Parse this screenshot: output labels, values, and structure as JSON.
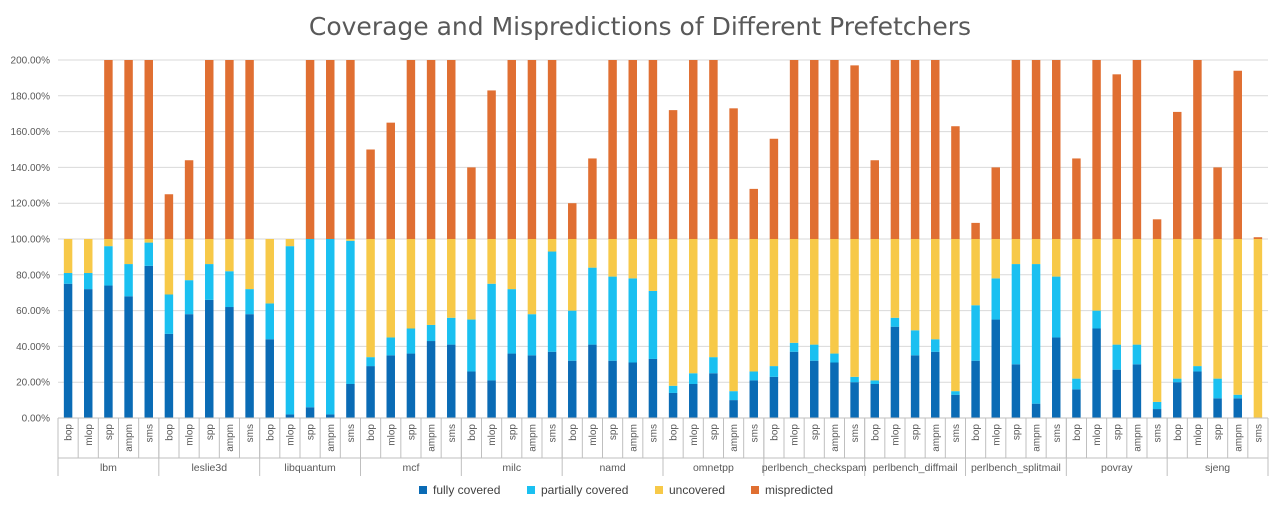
{
  "chart_data": {
    "type": "bar",
    "stacked": true,
    "title": "Coverage and Mispredictions of Different Prefetchers",
    "ylim": [
      0,
      200
    ],
    "y_ticks": [
      "0.00%",
      "20.00%",
      "40.00%",
      "60.00%",
      "80.00%",
      "100.00%",
      "120.00%",
      "140.00%",
      "160.00%",
      "180.00%",
      "200.00%"
    ],
    "grid": true,
    "legend_position": "bottom",
    "prefetchers": [
      "bop",
      "mlop",
      "spp",
      "ampm",
      "sms"
    ],
    "groups": [
      {
        "name": "lbm",
        "fully": [
          75,
          72,
          74,
          68,
          85
        ],
        "partial": [
          6,
          9,
          22,
          18,
          13
        ],
        "mis": [
          0,
          0,
          100,
          100,
          100
        ]
      },
      {
        "name": "leslie3d",
        "fully": [
          47,
          58,
          66,
          62,
          58
        ],
        "partial": [
          22,
          19,
          20,
          20,
          14
        ],
        "mis": [
          25,
          44,
          100,
          100,
          100
        ]
      },
      {
        "name": "libquantum",
        "fully": [
          44,
          2,
          6,
          2,
          19
        ],
        "partial": [
          20,
          94,
          94,
          98,
          80
        ],
        "mis": [
          0,
          0,
          100,
          100,
          100
        ]
      },
      {
        "name": "mcf",
        "fully": [
          29,
          35,
          36,
          43,
          41
        ],
        "partial": [
          5,
          10,
          14,
          9,
          15
        ],
        "mis": [
          50,
          65,
          100,
          100,
          100
        ]
      },
      {
        "name": "milc",
        "fully": [
          26,
          21,
          36,
          35,
          37
        ],
        "partial": [
          29,
          54,
          36,
          23,
          56
        ],
        "mis": [
          40,
          83,
          100,
          100,
          100
        ]
      },
      {
        "name": "namd",
        "fully": [
          32,
          41,
          32,
          31,
          33
        ],
        "partial": [
          28,
          43,
          47,
          47,
          38
        ],
        "mis": [
          20,
          45,
          100,
          100,
          100
        ]
      },
      {
        "name": "omnetpp",
        "fully": [
          14,
          19,
          25,
          10,
          21
        ],
        "partial": [
          4,
          6,
          9,
          5,
          5
        ],
        "mis": [
          72,
          100,
          100,
          73,
          28
        ]
      },
      {
        "name": "perlbench_checkspam",
        "fully": [
          23,
          37,
          32,
          31,
          20
        ],
        "partial": [
          6,
          5,
          9,
          5,
          3
        ],
        "mis": [
          56,
          100,
          100,
          100,
          97
        ]
      },
      {
        "name": "perlbench_diffmail",
        "fully": [
          19,
          51,
          35,
          37,
          13
        ],
        "partial": [
          2,
          5,
          14,
          7,
          2
        ],
        "mis": [
          44,
          100,
          100,
          100,
          63
        ]
      },
      {
        "name": "perlbench_splitmail",
        "fully": [
          32,
          55,
          30,
          8,
          45
        ],
        "partial": [
          31,
          23,
          56,
          78,
          34
        ],
        "mis": [
          9,
          40,
          100,
          100,
          100
        ]
      },
      {
        "name": "povray",
        "fully": [
          16,
          50,
          27,
          30,
          5
        ],
        "partial": [
          6,
          10,
          14,
          11,
          4
        ],
        "mis": [
          45,
          100,
          92,
          100,
          11
        ]
      },
      {
        "name": "sjeng",
        "fully": [
          20,
          26,
          11,
          11,
          0
        ],
        "partial": [
          2,
          3,
          11,
          2,
          0
        ],
        "mis": [
          71,
          100,
          40,
          94,
          1
        ]
      }
    ],
    "series": [
      {
        "name": "fully covered",
        "color": "#0A6BB5"
      },
      {
        "name": "partially covered",
        "color": "#1AC0F1"
      },
      {
        "name": "uncovered",
        "color": "#F7C948"
      },
      {
        "name": "mispredicted",
        "color": "#E06F32"
      }
    ]
  }
}
